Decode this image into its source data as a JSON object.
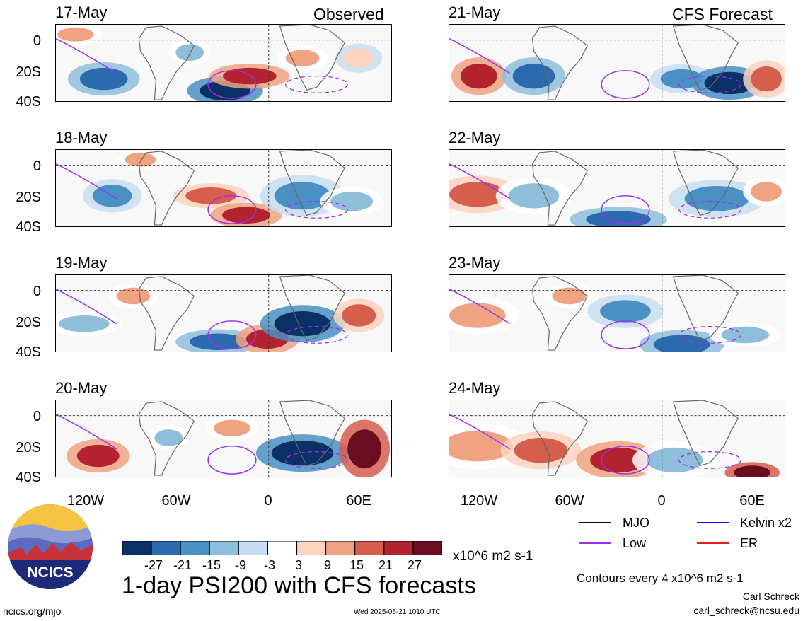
{
  "header": {
    "observed_label": "Observed",
    "forecast_label": "CFS Forecast"
  },
  "panels_observed": [
    {
      "date": "17-May"
    },
    {
      "date": "18-May"
    },
    {
      "date": "19-May"
    },
    {
      "date": "20-May"
    }
  ],
  "panels_forecast": [
    {
      "date": "21-May"
    },
    {
      "date": "22-May"
    },
    {
      "date": "23-May"
    },
    {
      "date": "24-May"
    }
  ],
  "y_ticks": [
    "0",
    "20S",
    "40S"
  ],
  "x_ticks": [
    "120W",
    "60W",
    "0",
    "60E"
  ],
  "colorbar": {
    "labels": [
      "-27",
      "-21",
      "-15",
      "-9",
      "-3",
      "3",
      "9",
      "15",
      "21",
      "27"
    ],
    "units": "x10^6 m2 s-1",
    "colors": [
      "#0a3066",
      "#2b6aae",
      "#4a90c4",
      "#8fbedb",
      "#c8def0",
      "#ffffff",
      "#fbd3bf",
      "#f0a383",
      "#d65e4d",
      "#b3222f",
      "#6b0c20"
    ]
  },
  "title": "1-day PSI200 with CFS forecasts",
  "legend": {
    "mjo": "MJO",
    "kelvin": "Kelvin x2",
    "low": "Low",
    "er": "ER",
    "colors": {
      "mjo": "#000000",
      "kelvin": "#0000ff",
      "low": "#9b30f0",
      "er": "#e02020"
    }
  },
  "contour_note": "Contours every 4 x10^6 m2 s-1",
  "author": "Carl Schreck",
  "email": "carl_schreck@ncsu.edu",
  "website": "ncics.org/mjo",
  "timestamp": "Wed 2025-05-21 1010 UTC",
  "logo": {
    "text": "NCICS"
  }
}
